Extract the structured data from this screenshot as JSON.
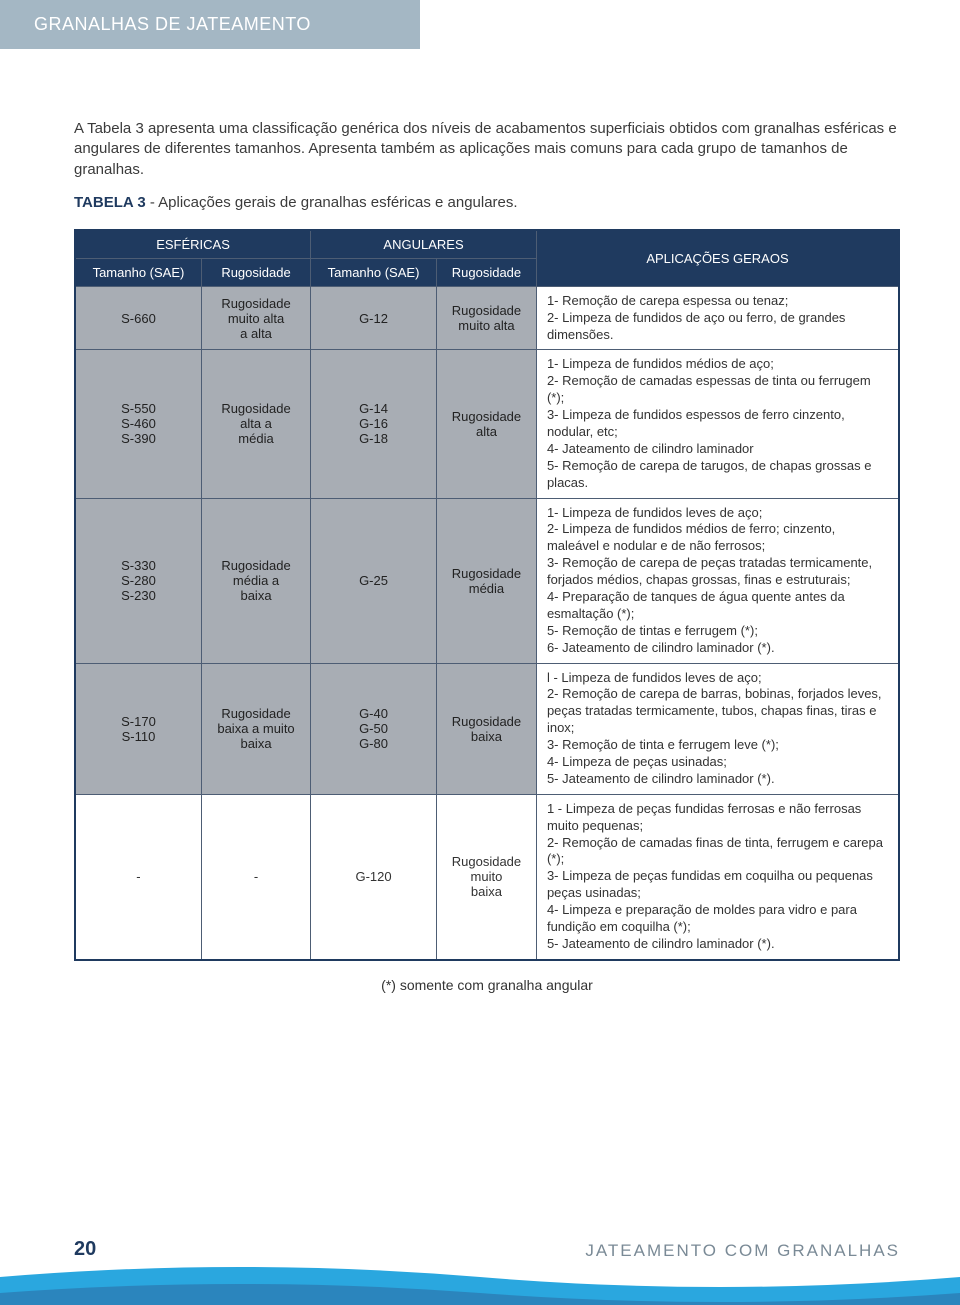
{
  "header": {
    "title": "GRANALHAS DE JATEAMENTO"
  },
  "intro": {
    "p1": "A Tabela 3 apresenta uma classificação genérica dos níveis de acabamentos superficiais obtidos com granalhas esféricas e angulares de diferentes tamanhos. Apresenta também as aplicações mais comuns para cada grupo de tamanhos de granalhas.",
    "caption_bold": "TABELA 3",
    "caption_rest": " - Aplicações gerais de granalhas esféricas e angulares."
  },
  "table": {
    "head": {
      "esfericas": "ESFÉRICAS",
      "angulares": "ANGULARES",
      "aplicacoes": "APLICAÇÕES GERAOS",
      "tamanho": "Tamanho (SAE)",
      "rugosidade": "Rugosidade"
    },
    "rows": [
      {
        "shade": true,
        "esf_size": "S-660",
        "esf_rug": "Rugosidade\nmuito alta\na alta",
        "ang_size": "G-12",
        "ang_rug": "Rugosidade\nmuito alta",
        "app": "1- Remoção de carepa espessa ou tenaz;\n2- Limpeza de fundidos de aço ou ferro, de grandes dimensões."
      },
      {
        "shade": true,
        "esf_size": "S-550\nS-460\nS-390",
        "esf_rug": "Rugosidade\nalta a\nmédia",
        "ang_size": "G-14\nG-16\nG-18",
        "ang_rug": "Rugosidade\nalta",
        "app": "1- Limpeza de fundidos médios de aço;\n2- Remoção de camadas espessas de tinta ou ferrugem (*);\n3- Limpeza de fundidos espessos de ferro cinzento, nodular, etc;\n4- Jateamento de cilindro laminador\n5- Remoção de carepa de tarugos, de chapas grossas e placas."
      },
      {
        "shade": true,
        "esf_size": "S-330\nS-280\nS-230",
        "esf_rug": "Rugosidade\nmédia a\nbaixa",
        "ang_size": "G-25",
        "ang_rug": "Rugosidade\nmédia",
        "app": "1- Limpeza de fundidos leves de aço;\n2- Limpeza de fundidos médios de ferro; cinzento, maleável e nodular e de não ferrosos;\n3- Remoção de carepa de peças tratadas termicamente, forjados médios, chapas grossas, finas e estruturais;\n4- Preparação de tanques de água quente antes da esmaltação (*);\n5- Remoção de tintas e ferrugem (*);\n6- Jateamento de cilindro laminador (*)."
      },
      {
        "shade": true,
        "esf_size": "S-170\nS-110",
        "esf_rug": "Rugosidade\nbaixa a muito\nbaixa",
        "ang_size": "G-40\nG-50\nG-80",
        "ang_rug": "Rugosidade\nbaixa",
        "app": "l - Limpeza de fundidos leves de aço;\n2- Remoção de carepa de barras, bobinas, forjados leves, peças tratadas termicamente, tubos, chapas finas, tiras e inox;\n3- Remoção de tinta e ferrugem leve (*);\n4- Limpeza de peças usinadas;\n5- Jateamento de cilindro laminador (*)."
      },
      {
        "shade": false,
        "esf_size": "-",
        "esf_rug": "-",
        "ang_size": "G-120",
        "ang_rug": "Rugosidade\nmuito\nbaixa",
        "app": "1 - Limpeza de peças fundidas ferrosas e não ferrosas muito pequenas;\n2- Remoção de camadas finas de tinta, ferrugem e carepa (*);\n3- Limpeza de peças fundidas em coquilha ou pequenas peças usinadas;\n4- Limpeza e preparação de moldes para vidro e para fundição em coquilha (*);\n5- Jateamento de cilindro laminador (*)."
      }
    ],
    "footnote": "(*) somente com granalha angular"
  },
  "footer": {
    "page": "20",
    "text": "JATEAMENTO COM GRANALHAS"
  },
  "colors": {
    "header_band": "#a4b7c4",
    "table_head": "#1f3a5f",
    "shade_cell": "#a8adb4",
    "swoosh_blue": "#2aa7df",
    "swoosh_dark": "#2b6aa1"
  }
}
